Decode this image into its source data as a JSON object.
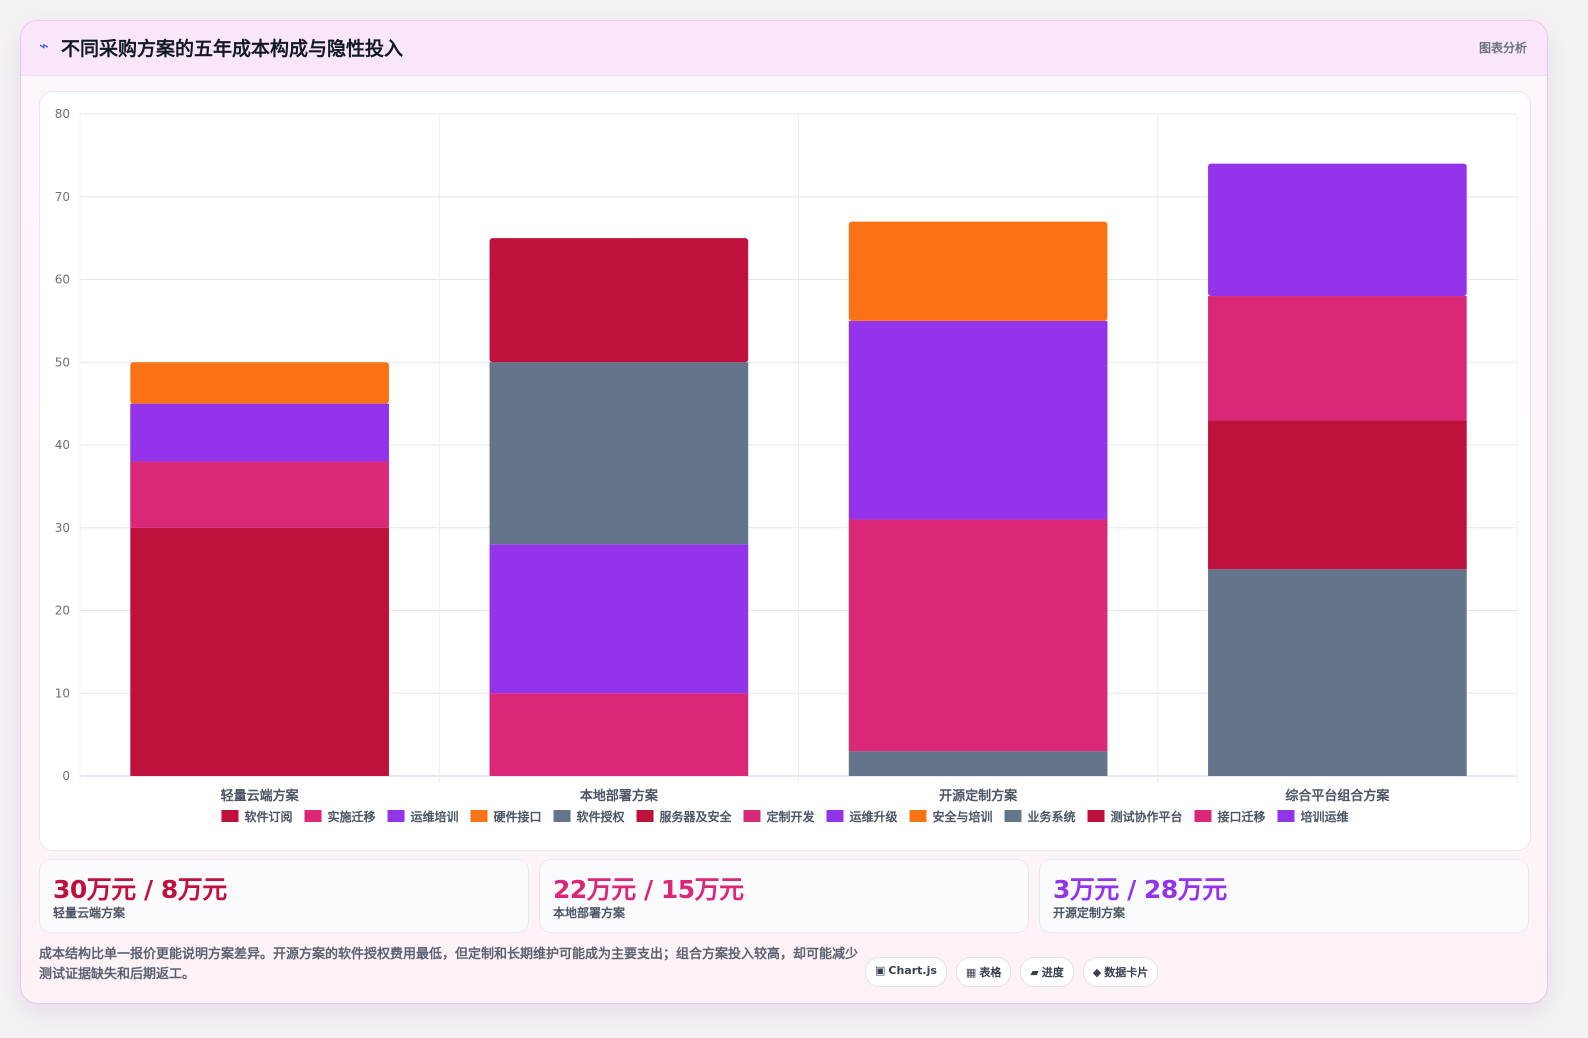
{
  "header": {
    "icon": "lightning-icon",
    "title": "不同采购方案的五年成本构成与隐性投入",
    "action_label": "图表分析"
  },
  "chart_data": {
    "type": "bar",
    "stacked": true,
    "title": "",
    "xlabel": "",
    "ylabel": "",
    "ylim": [
      0,
      80
    ],
    "yticks": [
      0,
      10,
      20,
      30,
      40,
      50,
      60,
      70,
      80
    ],
    "grid": true,
    "legend_position": "bottom",
    "categories": [
      "轻量云端方案",
      "本地部署方案",
      "开源定制方案",
      "综合平台组合方案"
    ],
    "series": [
      {
        "name": "软件订阅",
        "color": "#be123c",
        "values": [
          30,
          0,
          0,
          0
        ]
      },
      {
        "name": "实施迁移",
        "color": "#db2777",
        "values": [
          8,
          0,
          0,
          0
        ]
      },
      {
        "name": "运维培训",
        "color": "#9333ea",
        "values": [
          7,
          0,
          0,
          0
        ]
      },
      {
        "name": "硬件接口",
        "color": "#f97316",
        "values": [
          5,
          0,
          0,
          0
        ]
      },
      {
        "name": "软件授权",
        "color": "#64748b",
        "values": [
          0,
          0,
          3,
          0
        ]
      },
      {
        "name": "服务器及安全",
        "color": "#be123c",
        "values": [
          0,
          0,
          0,
          0
        ]
      },
      {
        "name": "定制开发",
        "color": "#db2777",
        "values": [
          0,
          10,
          28,
          0
        ]
      },
      {
        "name": "运维升级",
        "color": "#9333ea",
        "values": [
          0,
          18,
          24,
          0
        ]
      },
      {
        "name": "安全与培训",
        "color": "#f97316",
        "values": [
          0,
          0,
          12,
          0
        ]
      },
      {
        "name": "业务系统",
        "color": "#64748b",
        "values": [
          0,
          22,
          0,
          25
        ]
      },
      {
        "name": "测试协作平台",
        "color": "#be123c",
        "values": [
          0,
          15,
          0,
          18
        ]
      },
      {
        "name": "接口迁移",
        "color": "#db2777",
        "values": [
          0,
          0,
          0,
          15
        ]
      },
      {
        "name": "培训运维",
        "color": "#9333ea",
        "values": [
          0,
          0,
          0,
          16
        ]
      }
    ]
  },
  "stats": [
    {
      "value": "30万元 / 8万元",
      "label": "轻量云端方案",
      "color": "#be123c"
    },
    {
      "value": "22万元 / 15万元",
      "label": "本地部署方案",
      "color": "#db2777"
    },
    {
      "value": "3万元 / 28万元",
      "label": "开源定制方案",
      "color": "#9333ea"
    }
  ],
  "note": "成本结构比单一报价更能说明方案差异。开源方案的软件授权费用最低，但定制和长期维护可能成为主要支出；组合方案投入较高，却可能减少测试证据缺失和后期返工。",
  "tags": [
    {
      "glyph": "▣",
      "label": "Chart.js",
      "icon": "chart-icon"
    },
    {
      "glyph": "▦",
      "label": "表格",
      "icon": "table-icon"
    },
    {
      "glyph": "▰",
      "label": "进度",
      "icon": "progress-icon"
    },
    {
      "glyph": "◆",
      "label": "数据卡片",
      "icon": "card-icon"
    }
  ]
}
